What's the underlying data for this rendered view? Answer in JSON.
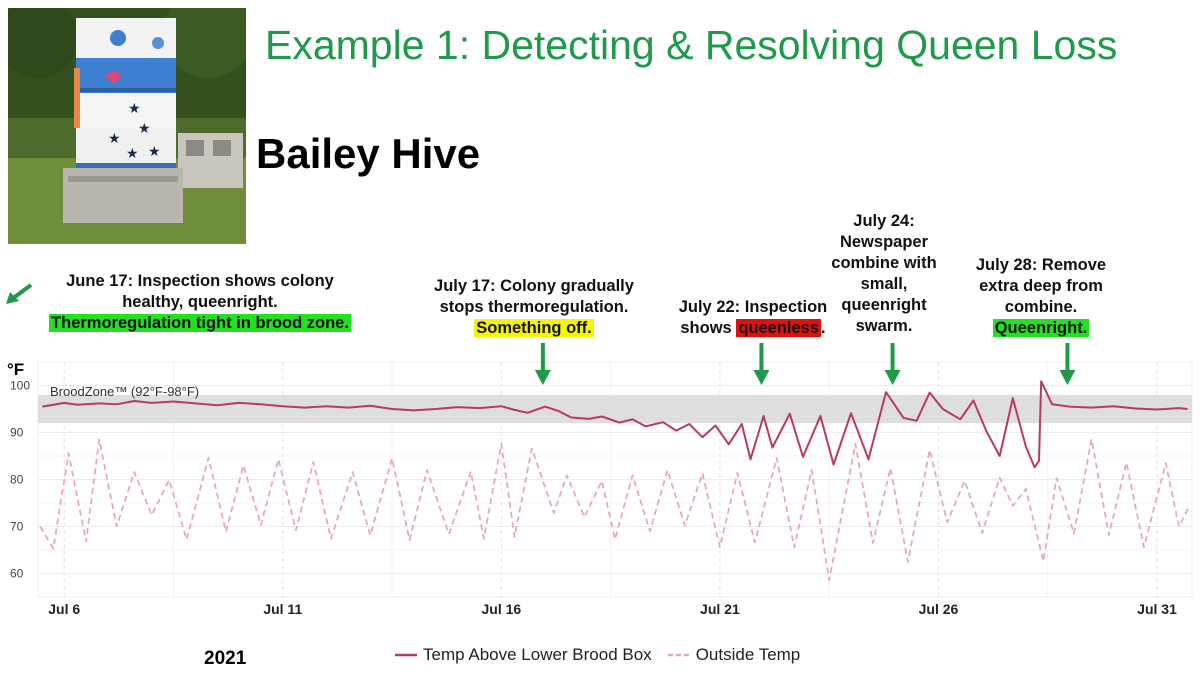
{
  "title": "Example 1: Detecting & Resolving Queen Loss",
  "hive_name": "Bailey Hive",
  "unit_label": "°F",
  "year_label": "2021",
  "annotations": [
    {
      "id": "jun17",
      "lines": [
        "June 17: Inspection shows colony",
        "healthy, queenright."
      ],
      "highlight": "Thermoregulation tight in brood zone.",
      "highlight_color": "#22e022",
      "pointer": "left"
    },
    {
      "id": "jul17",
      "lines": [
        "July 17: Colony gradually",
        "stops thermoregulation."
      ],
      "highlight": "Something off.",
      "highlight_color": "#f5f500",
      "pointer_date": 16.95
    },
    {
      "id": "jul22",
      "lines": [
        "July 22: Inspection"
      ],
      "line2_prefix": "shows ",
      "highlight": "queenless",
      "highlight_suffix": ".",
      "highlight_color": "#e01010",
      "pointer_date": 21.95
    },
    {
      "id": "jul24",
      "lines": [
        "July 24:",
        "Newspaper",
        "combine with",
        "small,",
        "queenright",
        "swarm."
      ],
      "pointer_date": 24.95
    },
    {
      "id": "jul28",
      "lines": [
        "July 28: Remove",
        "extra deep from",
        "combine."
      ],
      "highlight": "Queenright.",
      "highlight_color": "#22e022",
      "pointer_date": 28.95
    }
  ],
  "chart_data": {
    "type": "line",
    "title": "",
    "xlabel": "",
    "ylabel": "°F",
    "x_unit": "day of July 2021",
    "xlim": [
      5.4,
      31.8
    ],
    "ylim": [
      55,
      105
    ],
    "y_ticks": [
      60,
      70,
      80,
      90,
      100
    ],
    "x_ticks": [
      {
        "label": "Jul 6",
        "value": 6
      },
      {
        "label": "Jul 11",
        "value": 11
      },
      {
        "label": "Jul 16",
        "value": 16
      },
      {
        "label": "Jul 21",
        "value": 21
      },
      {
        "label": "Jul 26",
        "value": 26
      },
      {
        "label": "Jul 31",
        "value": 31
      }
    ],
    "band": {
      "label": "BroodZone™ (92°F-98°F)",
      "y_min": 92,
      "y_max": 98,
      "color": "#dcdcdc"
    },
    "legend_position": "bottom",
    "series": [
      {
        "name": "Temp Above Lower Brood Box",
        "color": "#b83a5e",
        "style": "solid",
        "points": [
          [
            5.5,
            95.5
          ],
          [
            6.0,
            96.3
          ],
          [
            6.3,
            95.9
          ],
          [
            6.8,
            96.2
          ],
          [
            7.2,
            96.0
          ],
          [
            7.6,
            96.7
          ],
          [
            8.0,
            96.3
          ],
          [
            8.5,
            96.6
          ],
          [
            9.0,
            96.2
          ],
          [
            9.5,
            95.8
          ],
          [
            10.0,
            96.3
          ],
          [
            10.5,
            96.0
          ],
          [
            11.0,
            95.6
          ],
          [
            11.5,
            95.3
          ],
          [
            12.0,
            95.6
          ],
          [
            12.5,
            95.3
          ],
          [
            13.0,
            95.7
          ],
          [
            13.5,
            95.0
          ],
          [
            14.0,
            94.7
          ],
          [
            14.5,
            95.0
          ],
          [
            15.0,
            95.4
          ],
          [
            15.5,
            95.2
          ],
          [
            16.0,
            95.6
          ],
          [
            16.3,
            94.8
          ],
          [
            16.6,
            94.2
          ],
          [
            17.0,
            95.5
          ],
          [
            17.3,
            94.6
          ],
          [
            17.6,
            93.2
          ],
          [
            18.0,
            92.9
          ],
          [
            18.3,
            93.4
          ],
          [
            18.7,
            92.1
          ],
          [
            19.0,
            92.8
          ],
          [
            19.3,
            91.3
          ],
          [
            19.7,
            92.2
          ],
          [
            20.0,
            90.4
          ],
          [
            20.3,
            91.8
          ],
          [
            20.6,
            89.0
          ],
          [
            20.9,
            91.5
          ],
          [
            21.2,
            87.5
          ],
          [
            21.5,
            91.8
          ],
          [
            21.7,
            84.3
          ],
          [
            22.0,
            93.5
          ],
          [
            22.2,
            86.8
          ],
          [
            22.6,
            94.0
          ],
          [
            22.9,
            84.8
          ],
          [
            23.3,
            93.5
          ],
          [
            23.6,
            83.2
          ],
          [
            24.0,
            94.1
          ],
          [
            24.4,
            84.3
          ],
          [
            24.8,
            98.6
          ],
          [
            25.2,
            93.1
          ],
          [
            25.5,
            92.5
          ],
          [
            25.8,
            98.5
          ],
          [
            26.1,
            95.0
          ],
          [
            26.5,
            92.8
          ],
          [
            26.8,
            96.8
          ],
          [
            27.1,
            90.2
          ],
          [
            27.4,
            85.0
          ],
          [
            27.7,
            97.3
          ],
          [
            28.0,
            87.0
          ],
          [
            28.2,
            82.6
          ],
          [
            28.3,
            84.0
          ],
          [
            28.35,
            100.9
          ],
          [
            28.6,
            96.0
          ],
          [
            29.0,
            95.5
          ],
          [
            29.5,
            95.3
          ],
          [
            30.0,
            95.6
          ],
          [
            30.5,
            95.1
          ],
          [
            31.0,
            94.9
          ],
          [
            31.5,
            95.2
          ],
          [
            31.7,
            95.0
          ]
        ]
      },
      {
        "name": "Outside Temp",
        "color": "#e8a9b6",
        "style": "dashed",
        "points": [
          [
            5.45,
            70.0
          ],
          [
            5.75,
            65.3
          ],
          [
            6.1,
            85.6
          ],
          [
            6.5,
            66.8
          ],
          [
            6.8,
            88.5
          ],
          [
            7.2,
            70.0
          ],
          [
            7.6,
            81.6
          ],
          [
            8.0,
            72.4
          ],
          [
            8.4,
            79.9
          ],
          [
            8.8,
            67.2
          ],
          [
            9.3,
            84.6
          ],
          [
            9.7,
            68.9
          ],
          [
            10.1,
            83.0
          ],
          [
            10.5,
            70.3
          ],
          [
            10.9,
            84.3
          ],
          [
            11.3,
            69.2
          ],
          [
            11.7,
            83.7
          ],
          [
            12.1,
            67.4
          ],
          [
            12.6,
            81.6
          ],
          [
            13.0,
            68.1
          ],
          [
            13.5,
            84.5
          ],
          [
            13.9,
            67.1
          ],
          [
            14.3,
            82.0
          ],
          [
            14.8,
            68.4
          ],
          [
            15.3,
            81.7
          ],
          [
            15.6,
            67.4
          ],
          [
            16.0,
            87.6
          ],
          [
            16.3,
            67.8
          ],
          [
            16.7,
            86.6
          ],
          [
            17.2,
            72.9
          ],
          [
            17.5,
            80.9
          ],
          [
            17.9,
            72.0
          ],
          [
            18.3,
            79.7
          ],
          [
            18.6,
            67.3
          ],
          [
            19.0,
            80.9
          ],
          [
            19.4,
            69.0
          ],
          [
            19.8,
            82.0
          ],
          [
            20.2,
            70.2
          ],
          [
            20.6,
            81.3
          ],
          [
            21.0,
            65.6
          ],
          [
            21.4,
            81.4
          ],
          [
            21.8,
            66.6
          ],
          [
            22.3,
            84.6
          ],
          [
            22.7,
            65.6
          ],
          [
            23.1,
            82.0
          ],
          [
            23.5,
            58.6
          ],
          [
            24.1,
            87.6
          ],
          [
            24.5,
            66.5
          ],
          [
            24.9,
            82.4
          ],
          [
            25.3,
            62.5
          ],
          [
            25.8,
            86.3
          ],
          [
            26.2,
            70.9
          ],
          [
            26.6,
            79.7
          ],
          [
            27.0,
            68.6
          ],
          [
            27.4,
            80.4
          ],
          [
            27.7,
            74.4
          ],
          [
            28.0,
            78.0
          ],
          [
            28.4,
            62.6
          ],
          [
            28.7,
            80.3
          ],
          [
            29.1,
            68.5
          ],
          [
            29.5,
            88.6
          ],
          [
            29.9,
            68.2
          ],
          [
            30.3,
            83.6
          ],
          [
            30.7,
            65.6
          ],
          [
            31.2,
            83.5
          ],
          [
            31.5,
            70.0
          ],
          [
            31.75,
            74.5
          ]
        ]
      }
    ]
  }
}
